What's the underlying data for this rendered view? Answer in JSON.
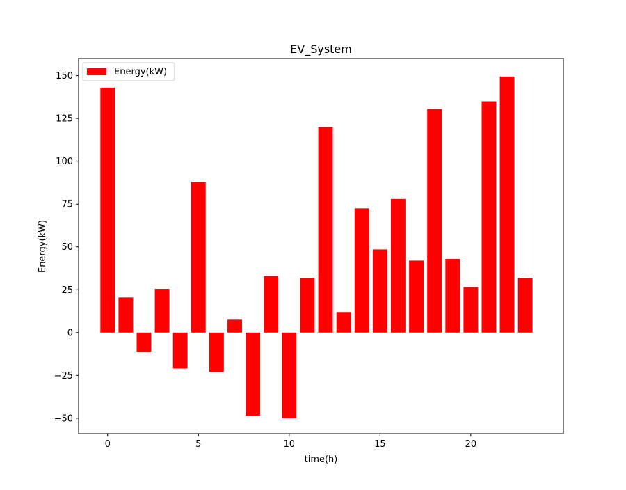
{
  "chart_data": {
    "type": "bar",
    "title": "EV_System",
    "xlabel": "time(h)",
    "ylabel": "Energy(kW)",
    "x": [
      0,
      1,
      2,
      3,
      4,
      5,
      6,
      7,
      8,
      9,
      10,
      11,
      12,
      13,
      14,
      15,
      16,
      17,
      18,
      19,
      20,
      21,
      22,
      23
    ],
    "series": [
      {
        "name": "Energy(kW)",
        "color": "#ff0000",
        "values": [
          143,
          20.5,
          -11.5,
          25.5,
          -21,
          88,
          -23,
          7.5,
          -48.5,
          33,
          -50,
          32,
          120,
          12,
          72.5,
          48.5,
          78,
          42,
          130.5,
          43,
          26.5,
          135,
          149.5,
          32
        ]
      }
    ],
    "xlim": [
      -1.6,
      25.1
    ],
    "ylim": [
      -59,
      160
    ],
    "xticks": [
      0,
      5,
      10,
      15,
      20
    ],
    "xtick_labels": [
      "0",
      "5",
      "10",
      "15",
      "20"
    ],
    "yticks": [
      -50,
      -25,
      0,
      25,
      50,
      75,
      100,
      125,
      150
    ],
    "ytick_labels": [
      "−50",
      "−25",
      "0",
      "25",
      "50",
      "75",
      "100",
      "125",
      "150"
    ],
    "bar_width": 0.8,
    "legend_position": "upper-left",
    "grid": false
  }
}
